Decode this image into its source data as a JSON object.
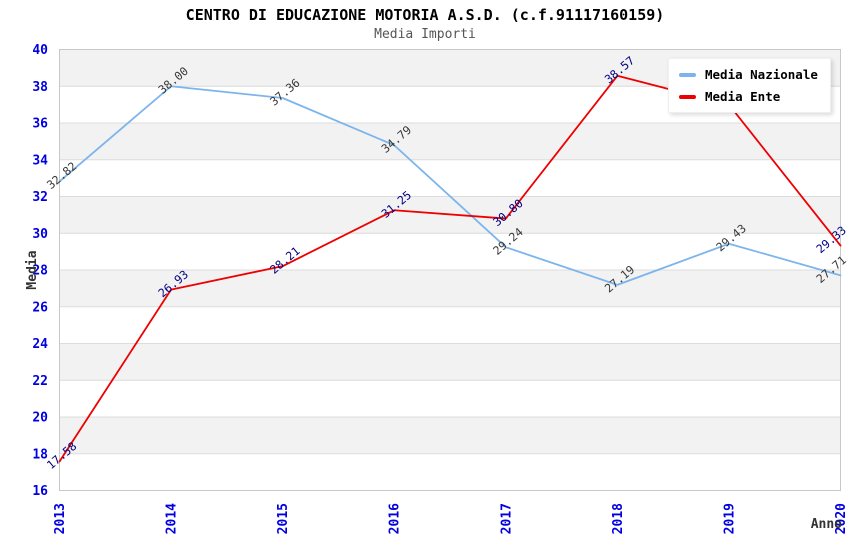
{
  "header": {
    "title": "CENTRO DI EDUCAZIONE MOTORIA A.S.D. (c.f.91117160159)",
    "subtitle": "Media Importi"
  },
  "colors": {
    "tick_label": "#0000e0",
    "axis_title": "#333333",
    "band": "#f2f2f2",
    "gridline": "#dcdcdc",
    "plot_border": "#c8c8c8",
    "legend_bg": "#ffffff"
  },
  "legend": {
    "position": "top-right",
    "items": [
      {
        "label": "Media Nazionale",
        "color": "#7cb5ec"
      },
      {
        "label": "Media Ente",
        "color": "#ee0000"
      }
    ]
  },
  "chart_data": {
    "type": "line",
    "title": "CENTRO DI EDUCAZIONE MOTORIA A.S.D. (c.f.91117160159)",
    "subtitle": "Media Importi",
    "xlabel": "Anno",
    "ylabel": "Media",
    "categories": [
      "2013",
      "2014",
      "2015",
      "2016",
      "2017",
      "2018",
      "2019",
      "2020"
    ],
    "ylim": [
      16,
      40
    ],
    "ytick_step": 2,
    "grid": "horizontal-bands-alternating",
    "series": [
      {
        "name": "Media Nazionale",
        "color": "#7cb5ec",
        "label_color": "#383838",
        "values": [
          32.82,
          38.0,
          37.36,
          34.79,
          29.24,
          27.19,
          29.43,
          27.71
        ],
        "labels": [
          "32.82",
          "38.00",
          "37.36",
          "34.79",
          "29.24",
          "27.19",
          "29.43",
          "27.71"
        ]
      },
      {
        "name": "Media Ente",
        "color": "#ee0000",
        "label_color": "#000080",
        "values": [
          17.58,
          26.93,
          28.21,
          31.25,
          30.8,
          38.57,
          37.0,
          29.33
        ],
        "labels": [
          "17.58",
          "26.93",
          "28.21",
          "31.25",
          "30.80",
          "38.57",
          "",
          "29.33"
        ]
      }
    ]
  }
}
